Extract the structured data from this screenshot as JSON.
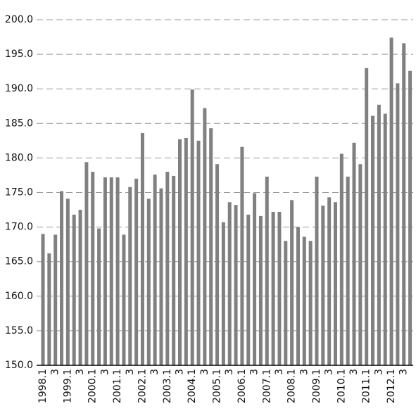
{
  "chart_data": {
    "type": "bar",
    "categories": [
      "1998.1",
      null,
      "3",
      null,
      "1999.1",
      null,
      "3",
      null,
      "2000.1",
      null,
      "3",
      null,
      "2001.1",
      null,
      "3",
      null,
      "2002.1",
      null,
      "3",
      null,
      "2003.1",
      null,
      "3",
      null,
      "2004.1",
      null,
      "3",
      null,
      "2005.1",
      null,
      "3",
      null,
      "2006.1",
      null,
      "3",
      null,
      "2007.1",
      null,
      "3",
      null,
      "2008.1",
      null,
      "3",
      null,
      "2009.1",
      null,
      "3",
      null,
      "2010.1",
      null,
      "3",
      null,
      "2011.1",
      null,
      "3",
      null,
      "2012.1",
      null,
      "3",
      null
    ],
    "values": [
      169.0,
      166.2,
      168.9,
      175.2,
      174.1,
      171.8,
      172.5,
      179.4,
      178.0,
      169.8,
      177.2,
      177.2,
      177.2,
      168.9,
      175.8,
      177.0,
      183.6,
      174.1,
      177.6,
      175.6,
      178.0,
      177.4,
      182.7,
      182.9,
      189.9,
      182.5,
      187.2,
      184.3,
      179.1,
      170.7,
      173.6,
      173.2,
      181.6,
      171.8,
      174.9,
      171.6,
      177.3,
      172.2,
      172.2,
      168.0,
      173.9,
      170.0,
      168.6,
      168.0,
      177.3,
      173.1,
      174.3,
      173.6,
      180.6,
      177.3,
      182.2,
      179.1,
      193.0,
      186.1,
      187.7,
      186.4,
      197.4,
      190.8,
      196.6,
      192.6
    ],
    "color": "#808080",
    "ylim": [
      150,
      200
    ],
    "yticks": [
      {
        "value": 150,
        "label": "150.0"
      },
      {
        "value": 155,
        "label": "155.0"
      },
      {
        "value": 160,
        "label": "160.0"
      },
      {
        "value": 165,
        "label": "165.0"
      },
      {
        "value": 170,
        "label": "170.0"
      },
      {
        "value": 175,
        "label": "175.0"
      },
      {
        "value": 180,
        "label": "180.0"
      },
      {
        "value": 185,
        "label": "185.0"
      },
      {
        "value": 190,
        "label": "190.0"
      },
      {
        "value": 195,
        "label": "195.0"
      },
      {
        "value": 200,
        "label": "200.0"
      }
    ],
    "grid": true
  }
}
